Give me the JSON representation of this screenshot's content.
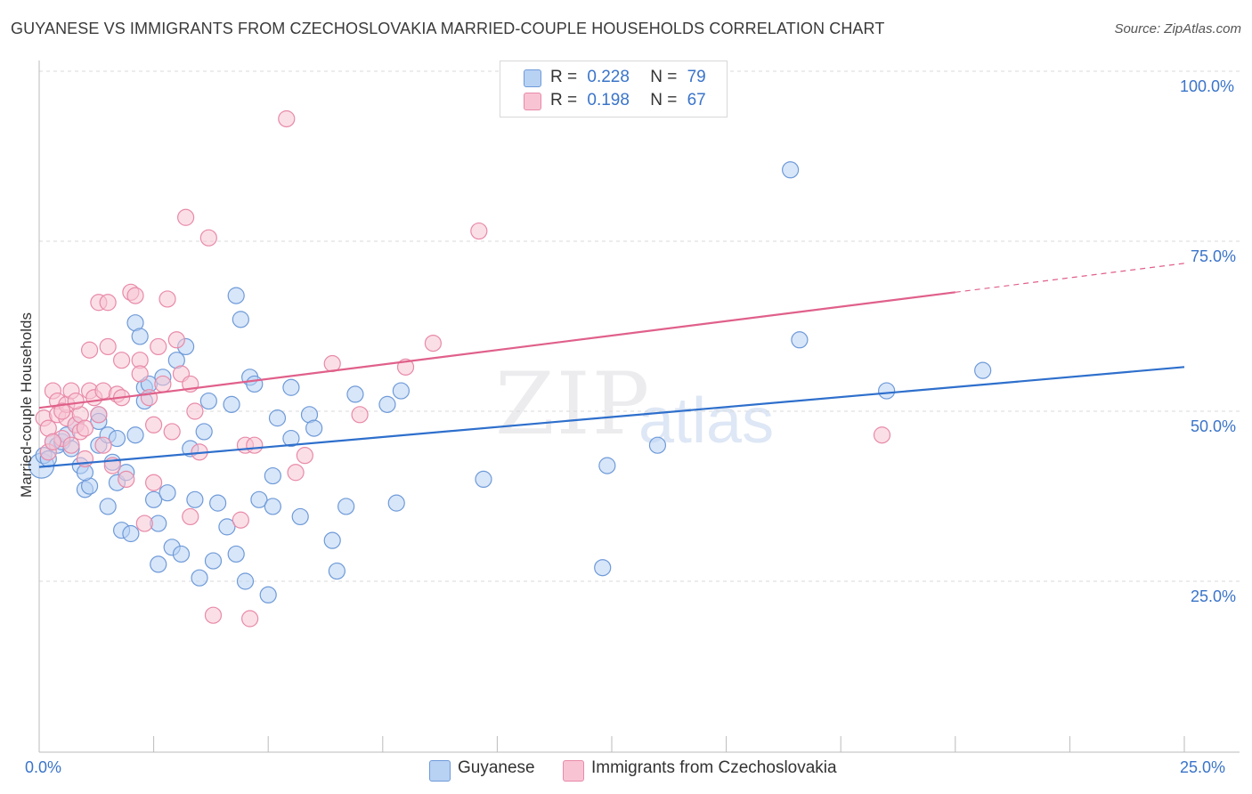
{
  "title": "GUYANESE VS IMMIGRANTS FROM CZECHOSLOVAKIA MARRIED-COUPLE HOUSEHOLDS CORRELATION CHART",
  "source": "Source: ZipAtlas.com",
  "watermark": {
    "zip": "ZIP",
    "atlas": "atlas"
  },
  "colors": {
    "blue_fill": "#b8d2f4",
    "blue_stroke": "#6e9ad8",
    "blue_line": "#2e6fcc",
    "pink_fill": "#f8c4d4",
    "pink_stroke": "#e88aa8",
    "pink_line": "#e0608a",
    "tick_text": "#3a74c9",
    "grid": "#d9d9d9"
  },
  "legend": {
    "rows": [
      {
        "r_label": "R =",
        "r_value": "0.228",
        "n_label": "N =",
        "n_value": "79"
      },
      {
        "r_label": "R =",
        "r_value": "0.198",
        "n_label": "N =",
        "n_value": "67"
      }
    ]
  },
  "bottom_legend": {
    "series1": "Guyanese",
    "series2": "Immigrants from Czechoslovakia"
  },
  "chart_data": {
    "type": "scatter",
    "title": "GUYANESE VS IMMIGRANTS FROM CZECHOSLOVAKIA MARRIED-COUPLE HOUSEHOLDS CORRELATION CHART",
    "xlabel": "",
    "ylabel": "Married-couple Households",
    "xlim": [
      0,
      25
    ],
    "ylim": [
      5,
      105
    ],
    "x_tick_labels": [
      "0.0%",
      "25.0%"
    ],
    "y_tick_labels": [
      "100.0%",
      "75.0%",
      "50.0%",
      "25.0%"
    ],
    "y_ticks": [
      100,
      75,
      50,
      25
    ],
    "grid": true,
    "legend_position": "top-center",
    "series": [
      {
        "name": "Guyanese",
        "trend": {
          "x": [
            0,
            25
          ],
          "y": [
            41.8,
            56.5
          ]
        },
        "points": [
          [
            0.05,
            42.0
          ],
          [
            0.1,
            43.5
          ],
          [
            0.3,
            45.5
          ],
          [
            0.4,
            45.0
          ],
          [
            0.5,
            45.5
          ],
          [
            0.6,
            46.5
          ],
          [
            0.8,
            48.0
          ],
          [
            0.9,
            42.0
          ],
          [
            1.0,
            38.5
          ],
          [
            1.1,
            39.0
          ],
          [
            1.3,
            49.5
          ],
          [
            1.3,
            45.0
          ],
          [
            1.3,
            48.5
          ],
          [
            1.5,
            46.5
          ],
          [
            1.5,
            36.0
          ],
          [
            1.6,
            42.5
          ],
          [
            1.7,
            39.5
          ],
          [
            1.7,
            46.0
          ],
          [
            1.9,
            41.0
          ],
          [
            1.8,
            32.5
          ],
          [
            2.0,
            32.0
          ],
          [
            2.1,
            63.0
          ],
          [
            2.2,
            61.0
          ],
          [
            2.1,
            46.5
          ],
          [
            2.3,
            53.5
          ],
          [
            2.3,
            51.5
          ],
          [
            2.4,
            54.0
          ],
          [
            2.5,
            37.0
          ],
          [
            2.6,
            27.5
          ],
          [
            2.6,
            33.5
          ],
          [
            2.7,
            55.0
          ],
          [
            2.8,
            38.0
          ],
          [
            2.9,
            30.0
          ],
          [
            3.0,
            57.5
          ],
          [
            3.1,
            29.0
          ],
          [
            3.2,
            59.5
          ],
          [
            3.3,
            44.5
          ],
          [
            3.4,
            37.0
          ],
          [
            3.5,
            25.5
          ],
          [
            3.6,
            47.0
          ],
          [
            3.7,
            51.5
          ],
          [
            3.8,
            28.0
          ],
          [
            3.9,
            36.5
          ],
          [
            4.1,
            33.0
          ],
          [
            4.2,
            51.0
          ],
          [
            4.3,
            67.0
          ],
          [
            4.3,
            29.0
          ],
          [
            4.4,
            63.5
          ],
          [
            4.5,
            25.0
          ],
          [
            4.6,
            55.0
          ],
          [
            4.7,
            54.0
          ],
          [
            4.8,
            37.0
          ],
          [
            5.0,
            23.0
          ],
          [
            5.1,
            36.0
          ],
          [
            5.2,
            49.0
          ],
          [
            5.1,
            40.5
          ],
          [
            5.5,
            53.5
          ],
          [
            5.5,
            46.0
          ],
          [
            5.7,
            34.5
          ],
          [
            5.9,
            49.5
          ],
          [
            6.0,
            47.5
          ],
          [
            6.4,
            31.0
          ],
          [
            6.5,
            26.5
          ],
          [
            6.7,
            36.0
          ],
          [
            6.9,
            52.5
          ],
          [
            7.6,
            51.0
          ],
          [
            7.9,
            53.0
          ],
          [
            7.8,
            36.5
          ],
          [
            9.7,
            40.0
          ],
          [
            12.3,
            27.0
          ],
          [
            12.4,
            42.0
          ],
          [
            13.5,
            45.0
          ],
          [
            16.4,
            85.5
          ],
          [
            16.6,
            60.5
          ],
          [
            18.5,
            53.0
          ],
          [
            20.6,
            56.0
          ],
          [
            1.0,
            41.0
          ],
          [
            0.2,
            43.0
          ],
          [
            0.7,
            44.5
          ]
        ]
      },
      {
        "name": "Immigrants from Czechoslovakia",
        "trend": {
          "x": [
            0,
            20
          ],
          "y": [
            50.5,
            67.5
          ]
        },
        "points": [
          [
            0.1,
            49.0
          ],
          [
            0.2,
            47.5
          ],
          [
            0.3,
            53.0
          ],
          [
            0.4,
            51.5
          ],
          [
            0.4,
            49.5
          ],
          [
            0.5,
            46.0
          ],
          [
            0.6,
            49.0
          ],
          [
            0.6,
            51.0
          ],
          [
            0.7,
            53.0
          ],
          [
            0.7,
            45.0
          ],
          [
            0.8,
            48.0
          ],
          [
            0.9,
            49.5
          ],
          [
            0.9,
            47.0
          ],
          [
            1.0,
            43.0
          ],
          [
            1.1,
            59.0
          ],
          [
            1.1,
            53.0
          ],
          [
            1.2,
            52.0
          ],
          [
            1.3,
            49.5
          ],
          [
            1.3,
            66.0
          ],
          [
            1.4,
            45.0
          ],
          [
            1.4,
            53.0
          ],
          [
            1.5,
            66.0
          ],
          [
            1.5,
            59.5
          ],
          [
            1.6,
            42.0
          ],
          [
            1.7,
            52.5
          ],
          [
            1.8,
            57.5
          ],
          [
            1.8,
            52.0
          ],
          [
            1.9,
            40.0
          ],
          [
            2.0,
            67.5
          ],
          [
            2.1,
            67.0
          ],
          [
            2.2,
            57.5
          ],
          [
            2.2,
            55.5
          ],
          [
            2.3,
            33.5
          ],
          [
            2.4,
            52.0
          ],
          [
            2.5,
            39.5
          ],
          [
            2.5,
            48.0
          ],
          [
            2.6,
            59.5
          ],
          [
            2.7,
            54.0
          ],
          [
            2.8,
            66.5
          ],
          [
            2.9,
            47.0
          ],
          [
            3.0,
            60.5
          ],
          [
            3.1,
            55.5
          ],
          [
            3.2,
            78.5
          ],
          [
            3.3,
            34.5
          ],
          [
            3.3,
            54.0
          ],
          [
            3.4,
            50.0
          ],
          [
            3.5,
            44.0
          ],
          [
            3.7,
            75.5
          ],
          [
            3.8,
            20.0
          ],
          [
            4.4,
            34.0
          ],
          [
            4.5,
            45.0
          ],
          [
            4.6,
            19.5
          ],
          [
            4.7,
            45.0
          ],
          [
            5.4,
            93.0
          ],
          [
            5.6,
            41.0
          ],
          [
            5.8,
            43.5
          ],
          [
            6.4,
            57.0
          ],
          [
            7.0,
            49.5
          ],
          [
            8.0,
            56.5
          ],
          [
            8.6,
            60.0
          ],
          [
            9.6,
            76.5
          ],
          [
            18.4,
            46.5
          ],
          [
            0.2,
            44.0
          ],
          [
            0.5,
            50.0
          ],
          [
            0.8,
            51.5
          ],
          [
            1.0,
            47.5
          ],
          [
            0.3,
            45.5
          ]
        ]
      }
    ]
  }
}
